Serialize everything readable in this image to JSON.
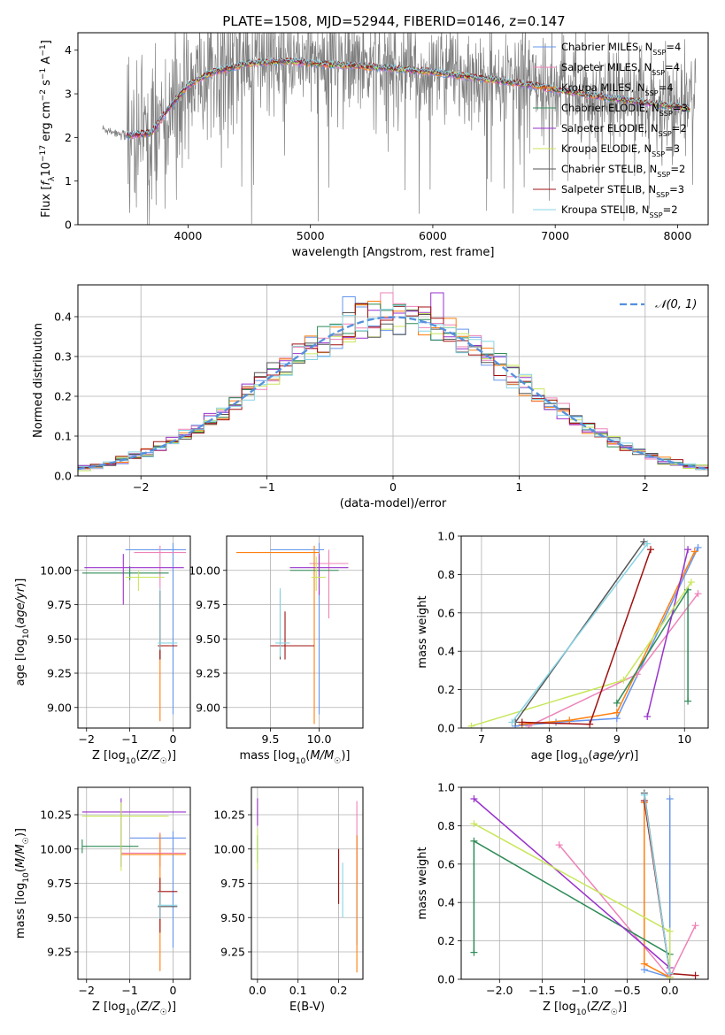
{
  "title": "PLATE=1508, MJD=52944, FIBERID=0146, z=0.147",
  "colors": {
    "Chabrier MILES": "#6495ed",
    "Salpeter MILES": "#ee82b8",
    "Kroupa MILES": "#ff7f0e",
    "Chabrier ELODIE": "#2e8b57",
    "Salpeter ELODIE": "#9932cc",
    "Kroupa ELODIE": "#c8e65a",
    "Chabrier STELIB": "#555555",
    "Salpeter STELIB": "#a01010",
    "Kroupa STELIB": "#88d4e4",
    "data": "#808080",
    "gaussian": "#5590dd",
    "grid": "#b0b0b0"
  },
  "chart_data": [
    {
      "type": "line",
      "xlabel": "wavelength [Angstrom, rest frame]",
      "ylabel": "Flux [f_λ 10^-17 erg cm^-2 s^-1 A^-1]",
      "xlim": [
        3100,
        8250
      ],
      "ylim": [
        0,
        4.4
      ],
      "xticks": [
        4000,
        5000,
        6000,
        7000,
        8000
      ],
      "yticks": [
        0,
        1,
        2,
        3,
        4
      ],
      "grid": false,
      "legend_position": "top-right",
      "legend": [
        {
          "name": "Chabrier MILES",
          "nssp": "4"
        },
        {
          "name": "Salpeter MILES",
          "nssp": "4"
        },
        {
          "name": "Kroupa MILES",
          "nssp": "4"
        },
        {
          "name": "Chabrier ELODIE",
          "nssp": "3"
        },
        {
          "name": "Salpeter ELODIE",
          "nssp": "2"
        },
        {
          "name": "Kroupa ELODIE",
          "nssp": "3"
        },
        {
          "name": "Chabrier STELIB",
          "nssp": "2"
        },
        {
          "name": "Salpeter STELIB",
          "nssp": "3"
        },
        {
          "name": "Kroupa STELIB",
          "nssp": "2"
        }
      ],
      "data_range": [
        3300,
        8150
      ],
      "model_trend": {
        "x": [
          3300,
          3500,
          3700,
          3850,
          4000,
          4200,
          4500,
          4800,
          5000,
          5300,
          5600,
          6000,
          6400,
          6800,
          7200,
          7600,
          8000,
          8100
        ],
        "y": [
          2.2,
          2.05,
          2.1,
          2.7,
          3.2,
          3.5,
          3.7,
          3.75,
          3.7,
          3.65,
          3.6,
          3.5,
          3.35,
          3.2,
          3.0,
          2.85,
          2.7,
          2.65
        ]
      }
    },
    {
      "type": "histogram",
      "xlabel": "(data-model)/error",
      "ylabel": "Normed distribution",
      "xlim": [
        -2.5,
        2.5
      ],
      "ylim": [
        0,
        0.48
      ],
      "xticks": [
        -2,
        -1,
        0,
        1,
        2
      ],
      "yticks": [
        0.0,
        0.1,
        0.2,
        0.3,
        0.4
      ],
      "grid": true,
      "legend_position": "top-right",
      "legend_label": "𝒩(0, 1)",
      "bin_width": 0.1,
      "bins_start": -2.5,
      "peak_values": {
        "Salpeter MILES": 0.46,
        "Chabrier MILES": 0.45,
        "Salpeter ELODIE": 0.46
      }
    },
    {
      "type": "scatter",
      "panel": "age vs Z",
      "xlabel": "Z [log10(Z/Z☉)]",
      "ylabel": "age  [log10(age/yr)]",
      "xlim": [
        -2.2,
        0.4
      ],
      "ylim": [
        8.85,
        10.25
      ],
      "xticks": [
        -2,
        -1,
        0
      ],
      "yticks": [
        9.0,
        9.25,
        9.5,
        9.75,
        10.0
      ],
      "grid": true,
      "series": [
        {
          "name": "Chabrier MILES",
          "x": 0.0,
          "y": 10.15,
          "xerr": [
            1.1,
            0.3
          ],
          "yerr": [
            1.2,
            0.05
          ]
        },
        {
          "name": "Salpeter MILES",
          "x": -0.3,
          "y": 10.13,
          "xerr": [
            0.6,
            0.6
          ],
          "yerr": [
            0.4,
            0.05
          ]
        },
        {
          "name": "Kroupa MILES",
          "x": -0.3,
          "y": 9.45,
          "xerr": [
            0.05,
            0.2
          ],
          "yerr": [
            0.55,
            0.3
          ]
        },
        {
          "name": "Chabrier ELODIE",
          "x": -1.0,
          "y": 9.98,
          "xerr": [
            1.1,
            0.9
          ],
          "yerr": [
            0.05,
            0.05
          ]
        },
        {
          "name": "Salpeter ELODIE",
          "x": -1.15,
          "y": 10.02,
          "xerr": [
            0.9,
            1.4
          ],
          "yerr": [
            0.27,
            0.1
          ]
        },
        {
          "name": "Kroupa ELODIE",
          "x": -0.8,
          "y": 9.95,
          "xerr": [
            0.3,
            0.6
          ],
          "yerr": [
            0.1,
            0.05
          ]
        },
        {
          "name": "Chabrier STELIB",
          "x": -0.3,
          "y": 9.45,
          "xerr": [
            0.05,
            0.35
          ],
          "yerr": [
            0.1,
            0.4
          ]
        },
        {
          "name": "Salpeter STELIB",
          "x": -0.3,
          "y": 9.45,
          "xerr": [
            0.05,
            0.4
          ],
          "yerr": [
            0.1,
            0.4
          ]
        },
        {
          "name": "Kroupa STELIB",
          "x": -0.3,
          "y": 9.47,
          "xerr": [
            0.05,
            0.4
          ],
          "yerr": [
            0.05,
            0.4
          ]
        }
      ]
    },
    {
      "type": "scatter",
      "panel": "age vs mass",
      "xlabel": "mass [log10(M/M☉)]",
      "ylabel": "",
      "xlim": [
        9.05,
        10.45
      ],
      "ylim": [
        8.85,
        10.25
      ],
      "xticks": [
        9.5,
        10.0
      ],
      "yticks": [
        9.0,
        9.25,
        9.5,
        9.75,
        10.0
      ],
      "grid": true,
      "series": [
        {
          "name": "Chabrier MILES",
          "x": 10.0,
          "y": 10.15,
          "xerr": [
            0.5,
            0.05
          ],
          "yerr": [
            1.2,
            0.05
          ]
        },
        {
          "name": "Salpeter MILES",
          "x": 10.1,
          "y": 10.05,
          "xerr": [
            0.2,
            0.2
          ],
          "yerr": [
            0.4,
            0.1
          ]
        },
        {
          "name": "Kroupa MILES",
          "x": 9.95,
          "y": 10.13,
          "xerr": [
            0.8,
            0.05
          ],
          "yerr": [
            1.25,
            0.05
          ]
        },
        {
          "name": "Chabrier ELODIE",
          "x": 10.0,
          "y": 10.0,
          "xerr": [
            0.3,
            0.2
          ],
          "yerr": [
            0.05,
            0.1
          ]
        },
        {
          "name": "Salpeter ELODIE",
          "x": 10.0,
          "y": 10.02,
          "xerr": [
            0.3,
            0.3
          ],
          "yerr": [
            0.2,
            0.1
          ]
        },
        {
          "name": "Kroupa ELODIE",
          "x": 9.97,
          "y": 9.95,
          "xerr": [
            0.05,
            0.1
          ],
          "yerr": [
            0.1,
            0.15
          ]
        },
        {
          "name": "Chabrier STELIB",
          "x": 9.6,
          "y": 9.45,
          "xerr": [
            0.05,
            0.1
          ],
          "yerr": [
            0.1,
            0.4
          ]
        },
        {
          "name": "Salpeter STELIB",
          "x": 9.65,
          "y": 9.45,
          "xerr": [
            0.15,
            0.3
          ],
          "yerr": [
            0.1,
            0.25
          ]
        },
        {
          "name": "Kroupa STELIB",
          "x": 9.6,
          "y": 9.47,
          "xerr": [
            0.05,
            0.1
          ],
          "yerr": [
            0.1,
            0.4
          ]
        }
      ]
    },
    {
      "type": "line",
      "panel": "mass weight vs age",
      "xlabel": "age  [log10(age/yr)]",
      "ylabel": "mass weight",
      "xlim": [
        6.7,
        10.35
      ],
      "ylim": [
        0,
        1.0
      ],
      "xticks": [
        7,
        8,
        9,
        10
      ],
      "yticks": [
        0.0,
        0.2,
        0.4,
        0.6,
        0.8,
        1.0
      ],
      "grid": true,
      "series": [
        {
          "name": "Chabrier MILES",
          "x": [
            7.5,
            8.1,
            9.0,
            10.2
          ],
          "y": [
            0.01,
            0.03,
            0.05,
            0.94
          ]
        },
        {
          "name": "Salpeter MILES",
          "x": [
            7.7,
            9.3,
            10.2
          ],
          "y": [
            0.01,
            0.28,
            0.7
          ]
        },
        {
          "name": "Kroupa MILES",
          "x": [
            7.6,
            8.3,
            9.0,
            10.15
          ],
          "y": [
            0.02,
            0.04,
            0.08,
            0.92
          ]
        },
        {
          "name": "Chabrier ELODIE",
          "x": [
            9.0,
            10.05,
            10.05
          ],
          "y": [
            0.13,
            0.72,
            0.14
          ]
        },
        {
          "name": "Salpeter ELODIE",
          "x": [
            9.45,
            10.05
          ],
          "y": [
            0.06,
            0.93
          ]
        },
        {
          "name": "Kroupa ELODIE",
          "x": [
            6.85,
            9.1,
            10.1
          ],
          "y": [
            0.01,
            0.25,
            0.76
          ]
        },
        {
          "name": "Chabrier STELIB",
          "x": [
            7.5,
            9.4
          ],
          "y": [
            0.03,
            0.97
          ]
        },
        {
          "name": "Salpeter STELIB",
          "x": [
            7.6,
            8.6,
            9.5
          ],
          "y": [
            0.03,
            0.02,
            0.93
          ]
        },
        {
          "name": "Kroupa STELIB",
          "x": [
            7.45,
            9.45
          ],
          "y": [
            0.03,
            0.96
          ]
        }
      ]
    },
    {
      "type": "scatter",
      "panel": "mass vs Z",
      "xlabel": "Z [log10(Z/Z☉)]",
      "ylabel": "mass [log10(M/M☉)]",
      "xlim": [
        -2.2,
        0.4
      ],
      "ylim": [
        9.05,
        10.45
      ],
      "xticks": [
        -2,
        -1,
        0
      ],
      "yticks": [
        9.25,
        9.5,
        9.75,
        10.0,
        10.25
      ],
      "grid": true,
      "series": [
        {
          "name": "Chabrier MILES",
          "x": 0.0,
          "y": 10.08,
          "xerr": [
            1.0,
            0.3
          ],
          "yerr": [
            0.8,
            0.05
          ]
        },
        {
          "name": "Salpeter MILES",
          "x": -0.3,
          "y": 9.97,
          "xerr": [
            0.9,
            0.6
          ],
          "yerr": [
            0.1,
            0.15
          ]
        },
        {
          "name": "Kroupa MILES",
          "x": -0.3,
          "y": 9.96,
          "xerr": [
            0.9,
            0.6
          ],
          "yerr": [
            0.85,
            0.15
          ]
        },
        {
          "name": "Chabrier ELODIE",
          "x": -2.1,
          "y": 10.02,
          "xerr": [
            0.0,
            1.3
          ],
          "yerr": [
            0.05,
            0.05
          ]
        },
        {
          "name": "Salpeter ELODIE",
          "x": -1.2,
          "y": 10.27,
          "xerr": [
            0.9,
            1.5
          ],
          "yerr": [
            0.4,
            0.1
          ]
        },
        {
          "name": "Kroupa ELODIE",
          "x": -1.2,
          "y": 10.24,
          "xerr": [
            0.9,
            1.1
          ],
          "yerr": [
            0.4,
            0.1
          ]
        },
        {
          "name": "Chabrier STELIB",
          "x": -0.3,
          "y": 9.58,
          "xerr": [
            0.05,
            0.4
          ],
          "yerr": [
            0.1,
            0.1
          ]
        },
        {
          "name": "Salpeter STELIB",
          "x": -0.3,
          "y": 9.69,
          "xerr": [
            0.05,
            0.4
          ],
          "yerr": [
            0.3,
            0.1
          ]
        },
        {
          "name": "Kroupa STELIB",
          "x": -0.3,
          "y": 9.59,
          "xerr": [
            0.05,
            0.4
          ],
          "yerr": [
            0.1,
            0.1
          ]
        }
      ]
    },
    {
      "type": "scatter",
      "panel": "mass vs E(B-V)",
      "xlabel": "E(B-V)",
      "ylabel": "",
      "xlim": [
        -0.015,
        0.26
      ],
      "ylim": [
        9.05,
        10.45
      ],
      "xticks": [
        0.0,
        0.1,
        0.2
      ],
      "yticks": [
        9.25,
        9.5,
        9.75,
        10.0,
        10.25
      ],
      "grid": true,
      "series": [
        {
          "name": "Chabrier MILES",
          "x": 0.245,
          "y": 10.0,
          "yerr": [
            0.7,
            0.1
          ]
        },
        {
          "name": "Salpeter MILES",
          "x": 0.245,
          "y": 10.1,
          "yerr": [
            0.35,
            0.25
          ]
        },
        {
          "name": "Kroupa MILES",
          "x": 0.245,
          "y": 9.8,
          "yerr": [
            0.7,
            0.3
          ]
        },
        {
          "name": "Chabrier ELODIE",
          "x": 0.0,
          "y": 10.0,
          "yerr": [
            0.1,
            0.1
          ]
        },
        {
          "name": "Salpeter ELODIE",
          "x": 0.0,
          "y": 10.27,
          "yerr": [
            0.1,
            0.1
          ]
        },
        {
          "name": "Kroupa ELODIE",
          "x": 0.0,
          "y": 10.0,
          "yerr": [
            0.15,
            0.15
          ]
        },
        {
          "name": "Chabrier STELIB",
          "x": 0.2,
          "y": 9.8,
          "yerr": [
            0.2,
            0.2
          ]
        },
        {
          "name": "Salpeter STELIB",
          "x": 0.2,
          "y": 9.8,
          "yerr": [
            0.2,
            0.2
          ]
        },
        {
          "name": "Kroupa STELIB",
          "x": 0.21,
          "y": 9.75,
          "yerr": [
            0.25,
            0.15
          ]
        }
      ]
    },
    {
      "type": "line",
      "panel": "mass weight vs Z",
      "xlabel": "Z [log10(Z/Z☉)]",
      "ylabel": "mass weight",
      "xlim": [
        -2.45,
        0.45
      ],
      "ylim": [
        0,
        1.0
      ],
      "xticks": [
        -2.0,
        -1.5,
        -1.0,
        -0.5,
        0.0
      ],
      "yticks": [
        0.0,
        0.2,
        0.4,
        0.6,
        0.8,
        1.0
      ],
      "grid": true,
      "series": [
        {
          "name": "Chabrier MILES",
          "x": [
            0.0,
            0.0,
            -0.3
          ],
          "y": [
            0.94,
            0.01,
            0.05
          ]
        },
        {
          "name": "Salpeter MILES",
          "x": [
            -1.3,
            0.0,
            0.3
          ],
          "y": [
            0.7,
            0.01,
            0.28
          ]
        },
        {
          "name": "Kroupa MILES",
          "x": [
            -0.3,
            -0.3,
            0.0
          ],
          "y": [
            0.92,
            0.08,
            0.01
          ]
        },
        {
          "name": "Chabrier ELODIE",
          "x": [
            -2.3,
            -2.3,
            0.0
          ],
          "y": [
            0.14,
            0.72,
            0.13
          ]
        },
        {
          "name": "Salpeter ELODIE",
          "x": [
            -2.3,
            0.0
          ],
          "y": [
            0.94,
            0.06
          ]
        },
        {
          "name": "Kroupa ELODIE",
          "x": [
            -2.3,
            0.0,
            0.0
          ],
          "y": [
            0.81,
            0.25,
            0.01
          ]
        },
        {
          "name": "Chabrier STELIB",
          "x": [
            -0.3,
            0.0
          ],
          "y": [
            0.97,
            0.03
          ]
        },
        {
          "name": "Salpeter STELIB",
          "x": [
            -0.3,
            0.0,
            0.3
          ],
          "y": [
            0.93,
            0.03,
            0.02
          ]
        },
        {
          "name": "Kroupa STELIB",
          "x": [
            -0.3,
            0.0
          ],
          "y": [
            0.96,
            0.03
          ]
        }
      ]
    }
  ]
}
